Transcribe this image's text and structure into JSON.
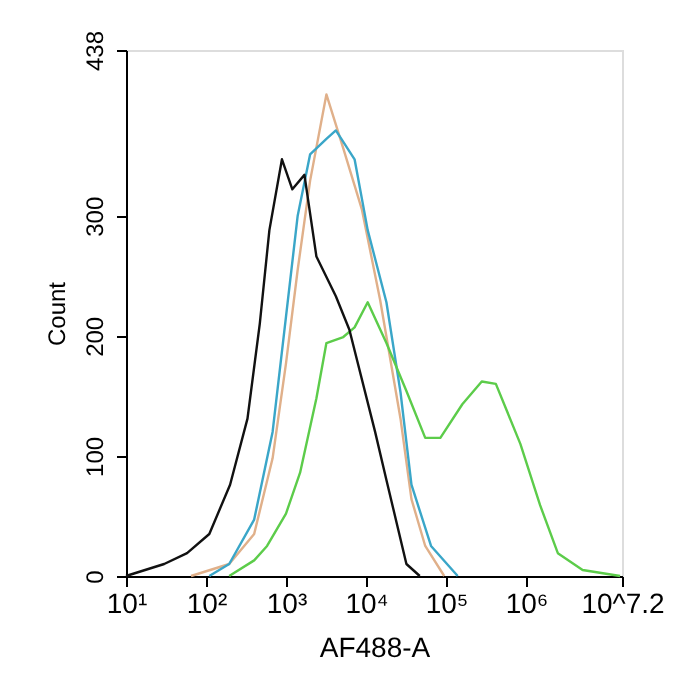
{
  "chart_data": {
    "type": "line",
    "xlabel": "AF488-A",
    "ylabel": "Count",
    "log": "x",
    "grid": false,
    "legend": false,
    "marker": "none",
    "line_style": "solid",
    "xlim": [
      10,
      15848932
    ],
    "ylim": [
      0,
      438
    ],
    "xticks": [
      {
        "value": 10,
        "label": "10¹"
      },
      {
        "value": 100,
        "label": "10²"
      },
      {
        "value": 1000,
        "label": "10³"
      },
      {
        "value": 10000,
        "label": "10⁴"
      },
      {
        "value": 100000,
        "label": "10⁵"
      },
      {
        "value": 1000000,
        "label": "10⁶"
      },
      {
        "value": 15848932,
        "label": "10^7.2"
      }
    ],
    "yticks": [
      0,
      100,
      200,
      300,
      438
    ],
    "series": [
      {
        "color": "#e0b08a",
        "x": [
          65,
          195,
          400,
          680,
          1000,
          1400,
          2000,
          3200,
          5200,
          8900,
          15000,
          27000,
          37000,
          55000,
          95000
        ],
        "values": [
          0,
          10,
          35,
          98,
          177,
          255,
          329,
          401,
          356,
          305,
          230,
          131,
          64,
          25,
          0
        ]
      },
      {
        "color": "#3aa6c8",
        "x": [
          110,
          195,
          400,
          680,
          1000,
          1400,
          2000,
          3200,
          4200,
          7200,
          10500,
          18000,
          27000,
          37000,
          65000,
          140000
        ],
        "values": [
          0,
          10,
          47,
          120,
          216,
          300,
          351,
          364,
          371,
          347,
          288,
          228,
          153,
          76,
          25,
          0
        ]
      },
      {
        "color": "#5ccc4a",
        "x": [
          195,
          400,
          580,
          1000,
          1500,
          2400,
          3200,
          5200,
          7200,
          10500,
          18000,
          32000,
          55000,
          85000,
          160000,
          280000,
          420000,
          850000,
          1500000,
          2500000,
          5100000,
          15000000
        ],
        "values": [
          0,
          13,
          25,
          52,
          86,
          148,
          194,
          199,
          207,
          228,
          194,
          154,
          115,
          115,
          143,
          162,
          160,
          110,
          59,
          19,
          5,
          0
        ]
      },
      {
        "color": "#111111",
        "x": [
          10,
          30,
          58,
          110,
          200,
          330,
          470,
          620,
          890,
          1200,
          1700,
          2400,
          4200,
          6200,
          13000,
          18000,
          32000,
          47000
        ],
        "values": [
          0,
          10,
          19,
          35,
          76,
          131,
          210,
          288,
          347,
          322,
          334,
          266,
          233,
          205,
          120,
          80,
          10,
          0
        ]
      }
    ]
  }
}
